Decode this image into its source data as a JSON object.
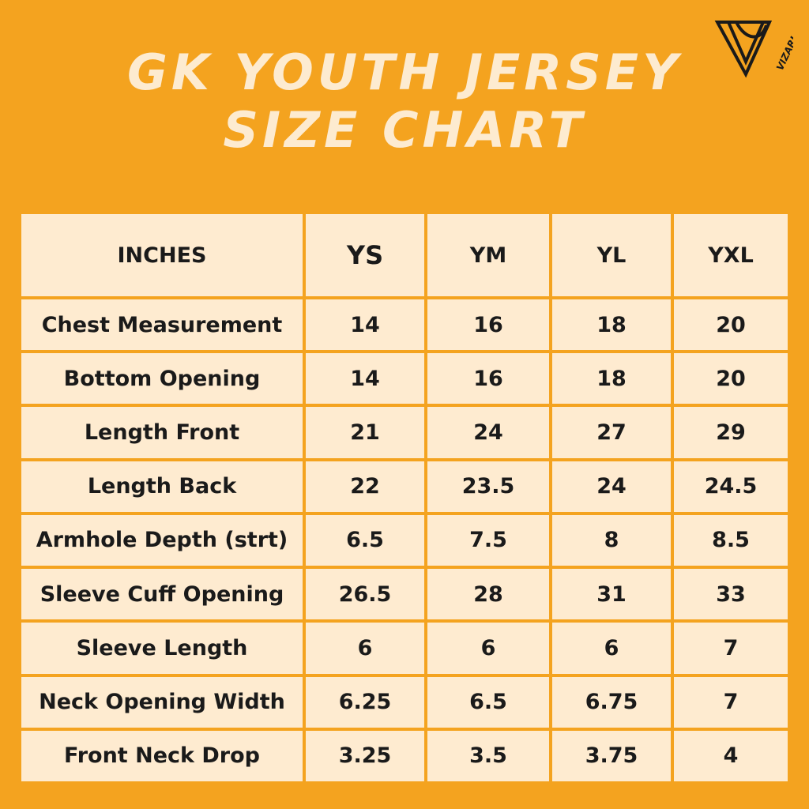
{
  "header": {
    "title": [
      "GK YOUTH JERSEY",
      "SIZE CHART"
    ],
    "logo": "VIZARI"
  },
  "table": {
    "columns": [
      "INCHES",
      "YS",
      "YM",
      "YL",
      "YXL"
    ],
    "rows": [
      [
        "Chest Measurement",
        14,
        16,
        18,
        20
      ],
      [
        "Bottom Opening",
        14,
        16,
        18,
        20
      ],
      [
        "Length Front",
        21,
        24,
        27,
        29
      ],
      [
        "Length Back",
        22,
        23.5,
        24,
        24.5
      ],
      [
        "Armhole Depth (strt)",
        6.5,
        7.5,
        8,
        8.5
      ],
      [
        "Sleeve Cuff Opening",
        26.5,
        28,
        31,
        33
      ],
      [
        "Sleeve Length",
        6,
        6,
        6,
        7
      ],
      [
        "Neck Opening Width",
        6.25,
        6.5,
        6.75,
        7
      ],
      [
        "Front Neck Drop",
        3.25,
        3.5,
        3.75,
        4
      ]
    ]
  }
}
